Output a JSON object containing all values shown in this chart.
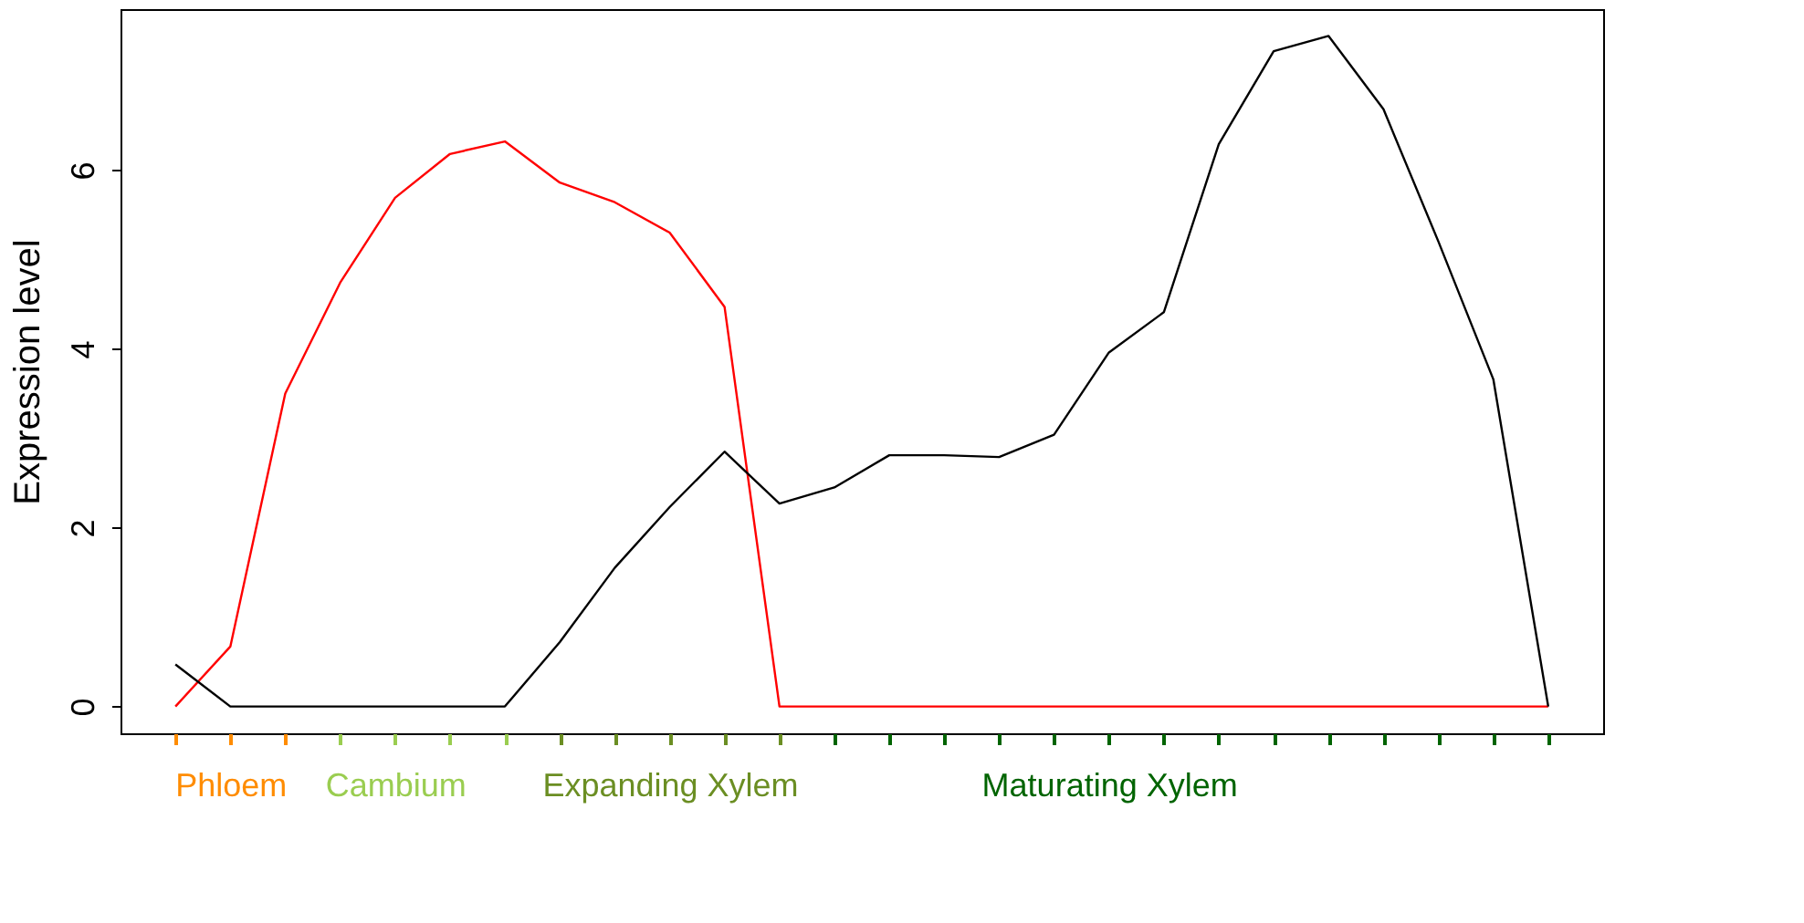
{
  "chart_data": {
    "type": "line",
    "ylabel": "Expression level",
    "categories": [
      null,
      null,
      null,
      null,
      null,
      null,
      null,
      null,
      null,
      null,
      null,
      null,
      null,
      null,
      null,
      null,
      null,
      null,
      null,
      null,
      null,
      null,
      null,
      null,
      null,
      null
    ],
    "series": [
      {
        "color": "#ff0000",
        "values": [
          0,
          0.67,
          3.5,
          4.74,
          5.69,
          6.18,
          6.32,
          5.86,
          5.64,
          5.3,
          4.47,
          0,
          0,
          0,
          0,
          0,
          0,
          0,
          0,
          0,
          0,
          0,
          0,
          0,
          0,
          0
        ]
      },
      {
        "color": "#000000",
        "values": [
          0.47,
          0,
          0,
          0,
          0,
          0,
          0,
          0.72,
          1.55,
          2.23,
          2.85,
          2.27,
          2.45,
          2.81,
          2.81,
          2.79,
          3.04,
          3.96,
          4.41,
          6.29,
          7.33,
          7.5,
          6.68,
          5.2,
          3.66,
          0
        ]
      }
    ],
    "ylim": [
      -0.3,
      7.8
    ],
    "yticks": [
      0,
      2,
      4,
      6
    ],
    "grid": false,
    "legend": false,
    "marker": "none",
    "line_style": "solid",
    "annotations": [
      "Phloem",
      "Cambium",
      "Expanding Xylem",
      "Maturating Xylem"
    ]
  }
}
